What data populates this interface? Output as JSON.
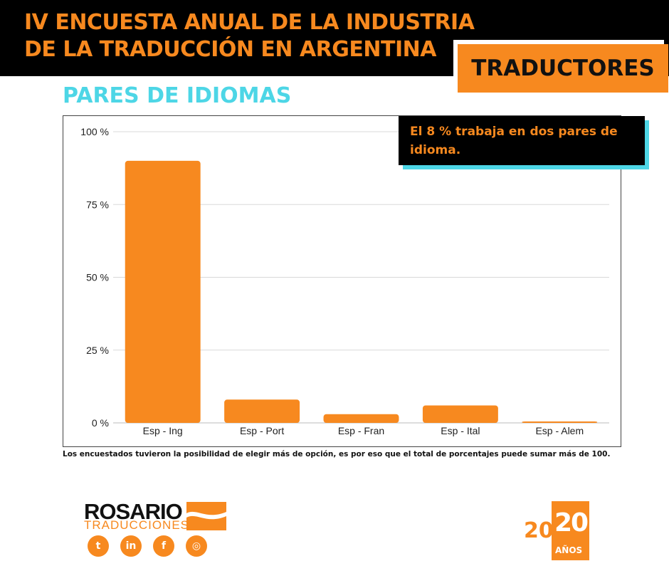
{
  "header": {
    "title_line1": "IV ENCUESTA ANUAL DE LA INDUSTRIA",
    "title_line2": "DE LA TRADUCCIÓN EN ARGENTINA",
    "badge": "TRADUCTORES"
  },
  "section_title": "PARES DE IDIOMAS",
  "callout": "El 8 % trabaja en dos pares de idioma.",
  "footnote": "Los encuestados tuvieron la posibilidad de elegir más de opción, es por eso que el total de porcentajes puede sumar más de 100.",
  "chart_data": {
    "type": "bar",
    "categories": [
      "Esp - Ing",
      "Esp - Port",
      "Esp - Fran",
      "Esp - Ital",
      "Esp - Alem"
    ],
    "values": [
      90,
      8,
      3,
      6,
      0.5
    ],
    "ylim": [
      0,
      100
    ],
    "yticks": [
      0,
      25,
      50,
      75,
      100
    ],
    "ytick_labels": [
      "0 %",
      "25 %",
      "50 %",
      "75 %",
      "100 %"
    ],
    "grid": true,
    "bar_color": "#f7891f",
    "title": "",
    "xlabel": "",
    "ylabel": ""
  },
  "brand": {
    "name": "ROSARIO",
    "tagline": "TRADUCCIONES",
    "accent_color": "#f7891f",
    "social": [
      "twitter-icon",
      "linkedin-icon",
      "facebook-icon",
      "instagram-icon"
    ],
    "social_glyphs": [
      "t",
      "in",
      "f",
      "◎"
    ]
  },
  "anniversary": {
    "part1": "20",
    "part2": "20",
    "label": "AÑOS"
  }
}
